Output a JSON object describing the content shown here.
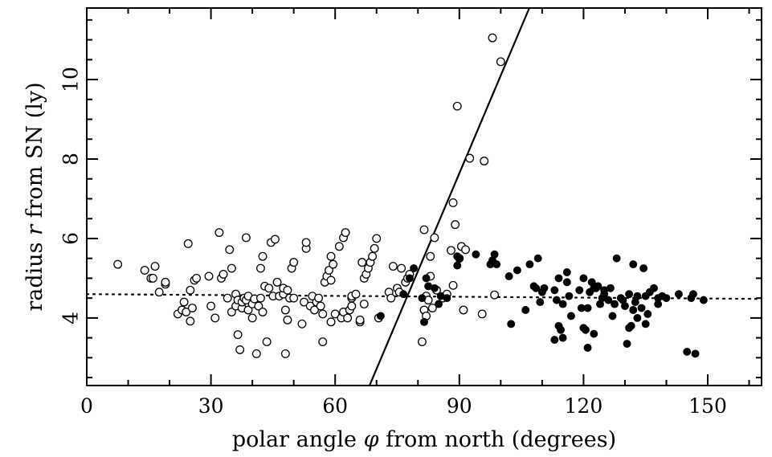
{
  "chart_data": {
    "type": "scatter",
    "xlabel_parts": [
      "polar angle ",
      "φ",
      " from north (degrees)"
    ],
    "ylabel_parts": [
      "radius ",
      "r",
      " from SN (ly)"
    ],
    "xlim": [
      0,
      163
    ],
    "ylim": [
      2.3,
      11.8
    ],
    "x_ticks": [
      0,
      30,
      60,
      90,
      120,
      150
    ],
    "y_ticks": [
      4,
      6,
      8,
      10
    ],
    "grid": false,
    "legend": "none",
    "series": [
      {
        "marker": "open-circle",
        "points": [
          [
            7.5,
            5.35
          ],
          [
            14,
            5.2
          ],
          [
            15.5,
            5.0
          ],
          [
            16,
            5.0
          ],
          [
            16.5,
            5.3
          ],
          [
            17.5,
            4.65
          ],
          [
            19,
            4.85
          ],
          [
            19,
            4.9
          ],
          [
            22,
            4.1
          ],
          [
            23,
            4.2
          ],
          [
            23.5,
            4.4
          ],
          [
            24,
            4.15
          ],
          [
            24.5,
            5.87
          ],
          [
            25,
            3.92
          ],
          [
            25,
            4.7
          ],
          [
            25.5,
            4.25
          ],
          [
            26,
            4.95
          ],
          [
            26.5,
            5.0
          ],
          [
            29.5,
            5.05
          ],
          [
            30,
            4.3
          ],
          [
            31,
            4.0
          ],
          [
            32,
            6.15
          ],
          [
            32.5,
            5.0
          ],
          [
            33,
            5.1
          ],
          [
            34,
            4.5
          ],
          [
            34.5,
            5.72
          ],
          [
            35,
            4.15
          ],
          [
            35,
            5.25
          ],
          [
            36,
            4.3
          ],
          [
            36,
            4.6
          ],
          [
            36.5,
            3.58
          ],
          [
            36.5,
            4.45
          ],
          [
            37,
            3.2
          ],
          [
            37.5,
            4.25
          ],
          [
            37.5,
            4.4
          ],
          [
            38,
            4.5
          ],
          [
            38.5,
            4.45
          ],
          [
            38.5,
            6.02
          ],
          [
            39,
            4.2
          ],
          [
            39,
            4.55
          ],
          [
            40,
            4.0
          ],
          [
            40,
            4.35
          ],
          [
            40.5,
            4.48
          ],
          [
            41,
            3.1
          ],
          [
            41.5,
            4.3
          ],
          [
            42,
            4.5
          ],
          [
            42,
            5.25
          ],
          [
            42.5,
            5.55
          ],
          [
            42.5,
            4.15
          ],
          [
            43,
            4.8
          ],
          [
            43.5,
            3.4
          ],
          [
            44,
            4.75
          ],
          [
            44.5,
            5.9
          ],
          [
            45,
            4.55
          ],
          [
            45.5,
            5.98
          ],
          [
            46,
            4.9
          ],
          [
            46.5,
            4.55
          ],
          [
            47.5,
            4.6
          ],
          [
            47.5,
            4.75
          ],
          [
            48,
            3.1
          ],
          [
            48,
            4.2
          ],
          [
            48.5,
            4.7
          ],
          [
            48.5,
            3.95
          ],
          [
            49,
            4.5
          ],
          [
            49.5,
            5.25
          ],
          [
            50,
            5.4
          ],
          [
            50,
            4.5
          ],
          [
            52,
            3.85
          ],
          [
            52.5,
            4.4
          ],
          [
            53,
            5.75
          ],
          [
            53,
            5.9
          ],
          [
            54,
            4.3
          ],
          [
            54.5,
            4.55
          ],
          [
            55,
            4.2
          ],
          [
            55.5,
            4.4
          ],
          [
            56,
            4.5
          ],
          [
            56.5,
            4.3
          ],
          [
            57,
            3.4
          ],
          [
            57,
            4.1
          ],
          [
            57.5,
            4.9
          ],
          [
            58,
            5.05
          ],
          [
            58.5,
            5.2
          ],
          [
            59,
            5.55
          ],
          [
            59,
            4.95
          ],
          [
            59,
            3.9
          ],
          [
            59.5,
            5.35
          ],
          [
            60,
            4.1
          ],
          [
            61,
            5.8
          ],
          [
            61.5,
            4.0
          ],
          [
            62,
            6.02
          ],
          [
            62,
            4.15
          ],
          [
            62.5,
            6.15
          ],
          [
            63,
            4.0
          ],
          [
            63.5,
            4.2
          ],
          [
            64,
            4.5
          ],
          [
            64,
            4.55
          ],
          [
            64,
            4.3
          ],
          [
            65,
            4.6
          ],
          [
            66,
            3.9
          ],
          [
            66,
            3.95
          ],
          [
            66.5,
            5.4
          ],
          [
            67,
            5.0
          ],
          [
            67,
            4.35
          ],
          [
            67.5,
            5.1
          ],
          [
            68,
            5.25
          ],
          [
            68.5,
            5.4
          ],
          [
            69,
            5.55
          ],
          [
            69.5,
            5.75
          ],
          [
            70,
            6.0
          ],
          [
            70.5,
            4.0
          ],
          [
            73,
            4.65
          ],
          [
            73.5,
            4.5
          ],
          [
            74,
            5.3
          ],
          [
            75,
            4.75
          ],
          [
            75.5,
            4.65
          ],
          [
            76,
            5.25
          ],
          [
            77,
            4.9
          ],
          [
            77.5,
            5.0
          ],
          [
            78,
            5.1
          ],
          [
            81,
            3.4
          ],
          [
            81.5,
            4.2
          ],
          [
            81.5,
            6.22
          ],
          [
            82,
            4.55
          ],
          [
            82,
            4.05
          ],
          [
            82.5,
            4.45
          ],
          [
            83,
            5.05
          ],
          [
            83,
            5.55
          ],
          [
            83.5,
            4.25
          ],
          [
            84,
            6.02
          ],
          [
            84.5,
            4.7
          ],
          [
            86,
            4.5
          ],
          [
            87,
            4.6
          ],
          [
            88,
            5.7
          ],
          [
            88.5,
            4.82
          ],
          [
            88.5,
            6.9
          ],
          [
            89,
            6.35
          ],
          [
            89.5,
            9.33
          ],
          [
            90,
            5.5
          ],
          [
            90.5,
            5.8
          ],
          [
            91,
            4.2
          ],
          [
            91.5,
            5.72
          ],
          [
            92.5,
            8.02
          ],
          [
            95.5,
            4.1
          ],
          [
            96,
            7.95
          ],
          [
            98,
            11.05
          ],
          [
            98.5,
            4.58
          ],
          [
            100,
            10.45
          ]
        ]
      },
      {
        "marker": "filled-circle",
        "points": [
          [
            71,
            4.05
          ],
          [
            76.5,
            4.6
          ],
          [
            78,
            5.0
          ],
          [
            79,
            5.25
          ],
          [
            81,
            4.5
          ],
          [
            81.5,
            3.9
          ],
          [
            82,
            5.0
          ],
          [
            82.5,
            4.8
          ],
          [
            84,
            4.75
          ],
          [
            85,
            4.35
          ],
          [
            85.5,
            4.55
          ],
          [
            87,
            4.5
          ],
          [
            89.5,
            5.32
          ],
          [
            89.5,
            5.55
          ],
          [
            90,
            5.5
          ],
          [
            94,
            5.6
          ],
          [
            97.5,
            5.35
          ],
          [
            98,
            5.45
          ],
          [
            98.5,
            5.6
          ],
          [
            99,
            5.35
          ],
          [
            102,
            5.05
          ],
          [
            102.5,
            3.85
          ],
          [
            104,
            5.2
          ],
          [
            106,
            4.2
          ],
          [
            107,
            5.35
          ],
          [
            108,
            4.8
          ],
          [
            108.5,
            4.75
          ],
          [
            109,
            5.5
          ],
          [
            109.5,
            4.4
          ],
          [
            110,
            4.65
          ],
          [
            110.5,
            4.75
          ],
          [
            113,
            4.7
          ],
          [
            113,
            3.45
          ],
          [
            113.5,
            4.45
          ],
          [
            114,
            5.0
          ],
          [
            114,
            3.8
          ],
          [
            114.5,
            3.7
          ],
          [
            115,
            4.35
          ],
          [
            115,
            3.5
          ],
          [
            116,
            5.15
          ],
          [
            116,
            4.9
          ],
          [
            116.5,
            4.55
          ],
          [
            117,
            4.05
          ],
          [
            119,
            4.7
          ],
          [
            119.5,
            4.25
          ],
          [
            120,
            5.0
          ],
          [
            120,
            3.75
          ],
          [
            120.5,
            3.7
          ],
          [
            121,
            4.25
          ],
          [
            121,
            3.25
          ],
          [
            121.5,
            4.65
          ],
          [
            122,
            4.9
          ],
          [
            122.5,
            4.75
          ],
          [
            122.5,
            3.6
          ],
          [
            123,
            4.75
          ],
          [
            123.5,
            4.8
          ],
          [
            124,
            4.35
          ],
          [
            124.5,
            4.5
          ],
          [
            125,
            4.6
          ],
          [
            125,
            4.7
          ],
          [
            126,
            4.45
          ],
          [
            126.5,
            4.75
          ],
          [
            127,
            4.05
          ],
          [
            127.5,
            4.35
          ],
          [
            128,
            5.5
          ],
          [
            129,
            4.5
          ],
          [
            129.5,
            4.45
          ],
          [
            130,
            4.3
          ],
          [
            130.5,
            3.35
          ],
          [
            131,
            3.75
          ],
          [
            131,
            4.6
          ],
          [
            131.5,
            3.8
          ],
          [
            132,
            5.35
          ],
          [
            132,
            4.2
          ],
          [
            132.5,
            4.4
          ],
          [
            133,
            4.55
          ],
          [
            133,
            4.0
          ],
          [
            134,
            4.25
          ],
          [
            134.5,
            5.25
          ],
          [
            135,
            3.85
          ],
          [
            135,
            4.55
          ],
          [
            135.5,
            4.1
          ],
          [
            136,
            4.65
          ],
          [
            137,
            4.75
          ],
          [
            138,
            4.35
          ],
          [
            138,
            4.5
          ],
          [
            139,
            4.55
          ],
          [
            140,
            4.5
          ],
          [
            143,
            4.6
          ],
          [
            145,
            3.15
          ],
          [
            146,
            4.5
          ],
          [
            146.5,
            4.6
          ],
          [
            147,
            3.1
          ],
          [
            149,
            4.45
          ]
        ]
      }
    ],
    "lines": [
      {
        "style": "solid",
        "x": [
          68.3,
          106.9
        ],
        "y": [
          2.3,
          11.8
        ]
      },
      {
        "style": "dotted",
        "x": [
          0,
          163
        ],
        "y": [
          4.6,
          4.48
        ]
      }
    ]
  }
}
